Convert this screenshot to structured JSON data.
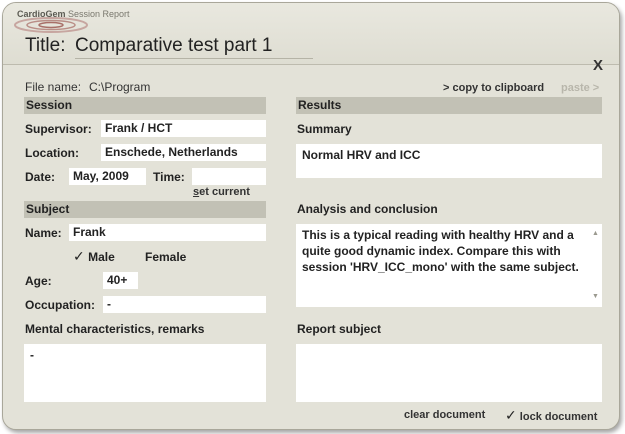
{
  "window": {
    "brand_main": "CardioGem",
    "brand_rest": " Session Report",
    "title_label": "Title:",
    "title_value": "Comparative test part 1",
    "close_label": "X"
  },
  "file": {
    "label": "File name:",
    "value": "C:\\Program"
  },
  "clipboard": {
    "copy_label": "> copy to clipboard",
    "paste_label": "paste >"
  },
  "session": {
    "heading": "Session",
    "supervisor_label": "Supervisor:",
    "supervisor_value": "Frank / HCT",
    "location_label": "Location:",
    "location_value": "Enschede, Netherlands",
    "date_label": "Date:",
    "date_value": "May, 2009",
    "time_label": "Time:",
    "time_value": "",
    "set_current_first": "s",
    "set_current_rest": "et current"
  },
  "subject": {
    "heading": "Subject",
    "name_label": "Name:",
    "name_value": "Frank",
    "male_check": "✓",
    "male_label": "Male",
    "female_label": "Female",
    "age_label": "Age:",
    "age_value": "40+",
    "occupation_label": "Occupation:",
    "occupation_value": "-",
    "mental_label": "Mental characteristics, remarks",
    "mental_value": "-"
  },
  "results": {
    "heading": "Results",
    "summary_label": "Summary",
    "summary_value": "Normal HRV and ICC",
    "analysis_label": "Analysis and conclusion",
    "analysis_value": "This is a typical reading with healthy HRV and a quite good dynamic index. Compare this with session 'HRV_ICC_mono' with the same subject.",
    "report_label": "Report subject",
    "report_value": ""
  },
  "footer": {
    "clear_label": "clear document",
    "lock_check": "✓",
    "lock_label": "lock document"
  },
  "icons": {
    "scroll_up": "▲",
    "scroll_down": "▼"
  }
}
